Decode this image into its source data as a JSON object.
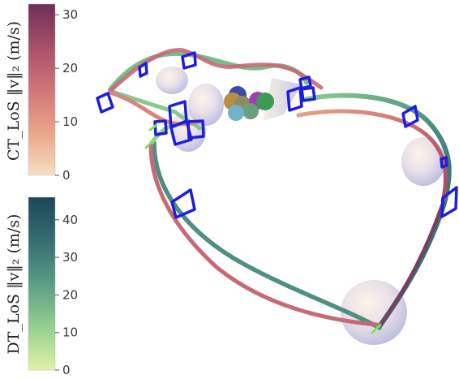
{
  "chart_data": {
    "type": "3d-trajectory",
    "colorbars": [
      {
        "id": "ct",
        "title": "CT_LoS ‖v‖₂ (m/s)",
        "range": [
          0,
          32
        ],
        "ticks": [
          0,
          10,
          20,
          30
        ],
        "tick_labels": [
          "0",
          "10",
          "20",
          "30"
        ],
        "colors": [
          "#f6dfc4",
          "#e9a587",
          "#d27479",
          "#a7516a",
          "#6f2f56"
        ]
      },
      {
        "id": "dt",
        "title": "DT_LoS ‖v‖₂ (m/s)",
        "range": [
          0,
          46
        ],
        "ticks": [
          0,
          10,
          20,
          30,
          40
        ],
        "tick_labels": [
          "0",
          "10",
          "20",
          "30",
          "40"
        ],
        "colors": [
          "#dff2a8",
          "#95cf8f",
          "#5a9d85",
          "#366e73",
          "#1f4658"
        ]
      }
    ],
    "trajectories": [
      {
        "name": "CT_LoS",
        "colormap": "ct"
      },
      {
        "name": "DT_LoS",
        "colormap": "dt"
      }
    ],
    "gate_color": "#1d1de0",
    "obstacle_colors": [
      "#c8c8e6",
      "#3d4aa8",
      "#b98f3e",
      "#a43bb6",
      "#3c9a54",
      "#6a9e7c",
      "#6fb2c9"
    ]
  }
}
